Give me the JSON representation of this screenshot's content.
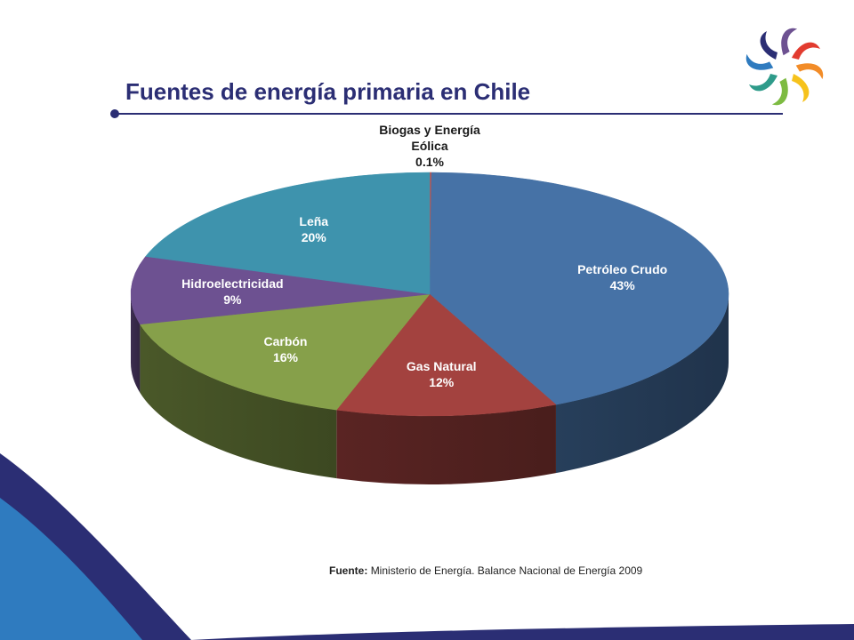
{
  "slide": {
    "title": "Fuentes de energía primaria en Chile",
    "source_label": "Fuente:",
    "source_text": "Ministerio de Energía. Balance Nacional de Energía 2009"
  },
  "colors": {
    "title": "#2b2e74",
    "wave_dark": "#2b2e74",
    "wave_light": "#2f7bbf"
  },
  "chart_data": {
    "type": "pie",
    "style": "3d",
    "slices": [
      {
        "label": "Biogas y Energía Eólica",
        "label_lines": [
          "Biogas y Energía",
          "Eólica"
        ],
        "value": 0.1,
        "value_text": "0.1%",
        "color": "#c0504d"
      },
      {
        "label": "Petróleo Crudo",
        "label_lines": [
          "Petróleo Crudo"
        ],
        "value": 43,
        "value_text": "43%",
        "color": "#4672a6"
      },
      {
        "label": "Gas Natural",
        "label_lines": [
          "Gas Natural"
        ],
        "value": 12,
        "value_text": "12%",
        "color": "#a3423f"
      },
      {
        "label": "Carbón",
        "label_lines": [
          "Carbón"
        ],
        "value": 16,
        "value_text": "16%",
        "color": "#86a04a"
      },
      {
        "label": "Hidroelectricidad",
        "label_lines": [
          "Hidroelectricidad"
        ],
        "value": 9,
        "value_text": "9%",
        "color": "#6d5191"
      },
      {
        "label": "Leña",
        "label_lines": [
          "Leña"
        ],
        "value": 20,
        "value_text": "20%",
        "color": "#3e93ad"
      }
    ]
  }
}
